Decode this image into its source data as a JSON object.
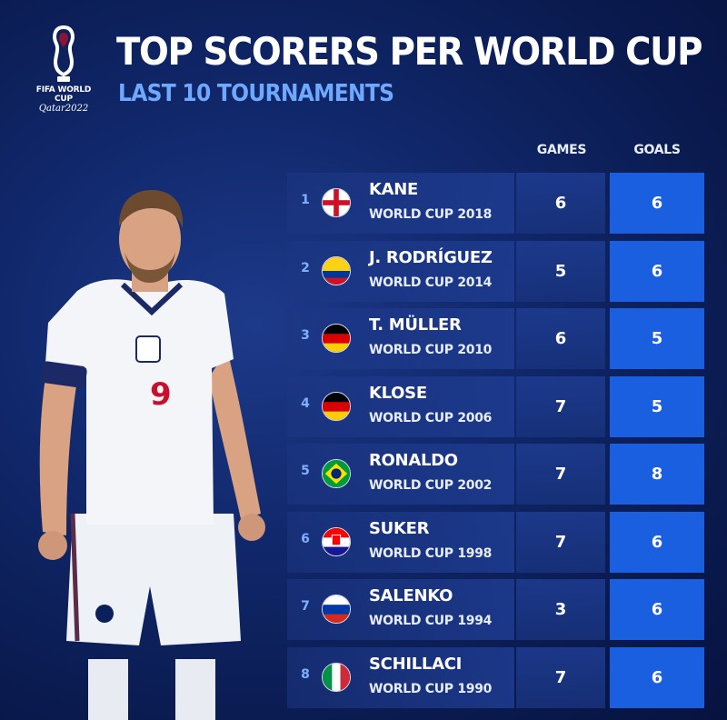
{
  "header": {
    "title": "TOP SCORERS PER WORLD CUP",
    "subtitle": "LAST 10 TOURNAMENTS",
    "logo_line1": "FIFA WORLD CUP",
    "logo_line2": "Qatar2022"
  },
  "columns": {
    "games": "GAMES",
    "goals": "GOALS"
  },
  "colors": {
    "accent": "#6fa8ff",
    "goals_cell": "#1a5fe0",
    "background": "#10276a"
  },
  "player": {
    "jersey_number": "9"
  },
  "rows": [
    {
      "rank": "1",
      "name": "KANE",
      "edition": "WORLD CUP 2018",
      "games": "6",
      "goals": "6",
      "flag": "england-flag-icon"
    },
    {
      "rank": "2",
      "name": "J. RODRÍGUEZ",
      "edition": "WORLD CUP 2014",
      "games": "5",
      "goals": "6",
      "flag": "colombia-flag-icon"
    },
    {
      "rank": "3",
      "name": "T. MÜLLER",
      "edition": "WORLD CUP 2010",
      "games": "6",
      "goals": "5",
      "flag": "germany-flag-icon"
    },
    {
      "rank": "4",
      "name": "KLOSE",
      "edition": "WORLD CUP 2006",
      "games": "7",
      "goals": "5",
      "flag": "germany-flag-icon"
    },
    {
      "rank": "5",
      "name": "RONALDO",
      "edition": "WORLD CUP 2002",
      "games": "7",
      "goals": "8",
      "flag": "brazil-flag-icon"
    },
    {
      "rank": "6",
      "name": "SUKER",
      "edition": "WORLD CUP 1998",
      "games": "7",
      "goals": "6",
      "flag": "croatia-flag-icon"
    },
    {
      "rank": "7",
      "name": "SALENKO",
      "edition": "WORLD CUP 1994",
      "games": "3",
      "goals": "6",
      "flag": "russia-flag-icon"
    },
    {
      "rank": "8",
      "name": "SCHILLACI",
      "edition": "WORLD CUP 1990",
      "games": "7",
      "goals": "6",
      "flag": "italy-flag-icon"
    }
  ]
}
